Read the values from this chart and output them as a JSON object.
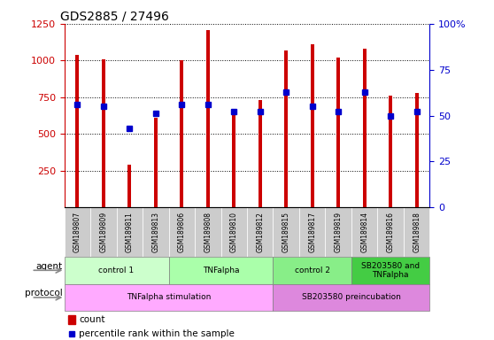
{
  "title": "GDS2885 / 27496",
  "samples": [
    "GSM189807",
    "GSM189809",
    "GSM189811",
    "GSM189813",
    "GSM189806",
    "GSM189808",
    "GSM189810",
    "GSM189812",
    "GSM189815",
    "GSM189817",
    "GSM189819",
    "GSM189814",
    "GSM189816",
    "GSM189818"
  ],
  "counts": [
    1040,
    1010,
    290,
    610,
    1000,
    1210,
    630,
    730,
    1070,
    1110,
    1020,
    1080,
    760,
    780
  ],
  "percentile_ranks": [
    56,
    55,
    43,
    51,
    56,
    56,
    52,
    52,
    63,
    55,
    52,
    63,
    50,
    52
  ],
  "ylim_left": [
    0,
    1250
  ],
  "ylim_right": [
    0,
    100
  ],
  "yticks_left": [
    250,
    500,
    750,
    1000,
    1250
  ],
  "yticks_right": [
    0,
    25,
    50,
    75,
    100
  ],
  "agent_groups": [
    {
      "label": "control 1",
      "start": 0,
      "end": 4,
      "color": "#ccffcc"
    },
    {
      "label": "TNFalpha",
      "start": 4,
      "end": 8,
      "color": "#aaffaa"
    },
    {
      "label": "control 2",
      "start": 8,
      "end": 11,
      "color": "#88ee88"
    },
    {
      "label": "SB203580 and\nTNFalpha",
      "start": 11,
      "end": 14,
      "color": "#44cc44"
    }
  ],
  "protocol_groups": [
    {
      "label": "TNFalpha stimulation",
      "start": 0,
      "end": 8,
      "color": "#ffaaff"
    },
    {
      "label": "SB203580 preincubation",
      "start": 8,
      "end": 14,
      "color": "#dd88dd"
    }
  ],
  "bar_color": "#cc0000",
  "dot_color": "#0000cc",
  "left_axis_color": "#cc0000",
  "right_axis_color": "#0000cc",
  "background_color": "#ffffff",
  "sample_label_bg": "#cccccc",
  "bar_width": 0.15
}
